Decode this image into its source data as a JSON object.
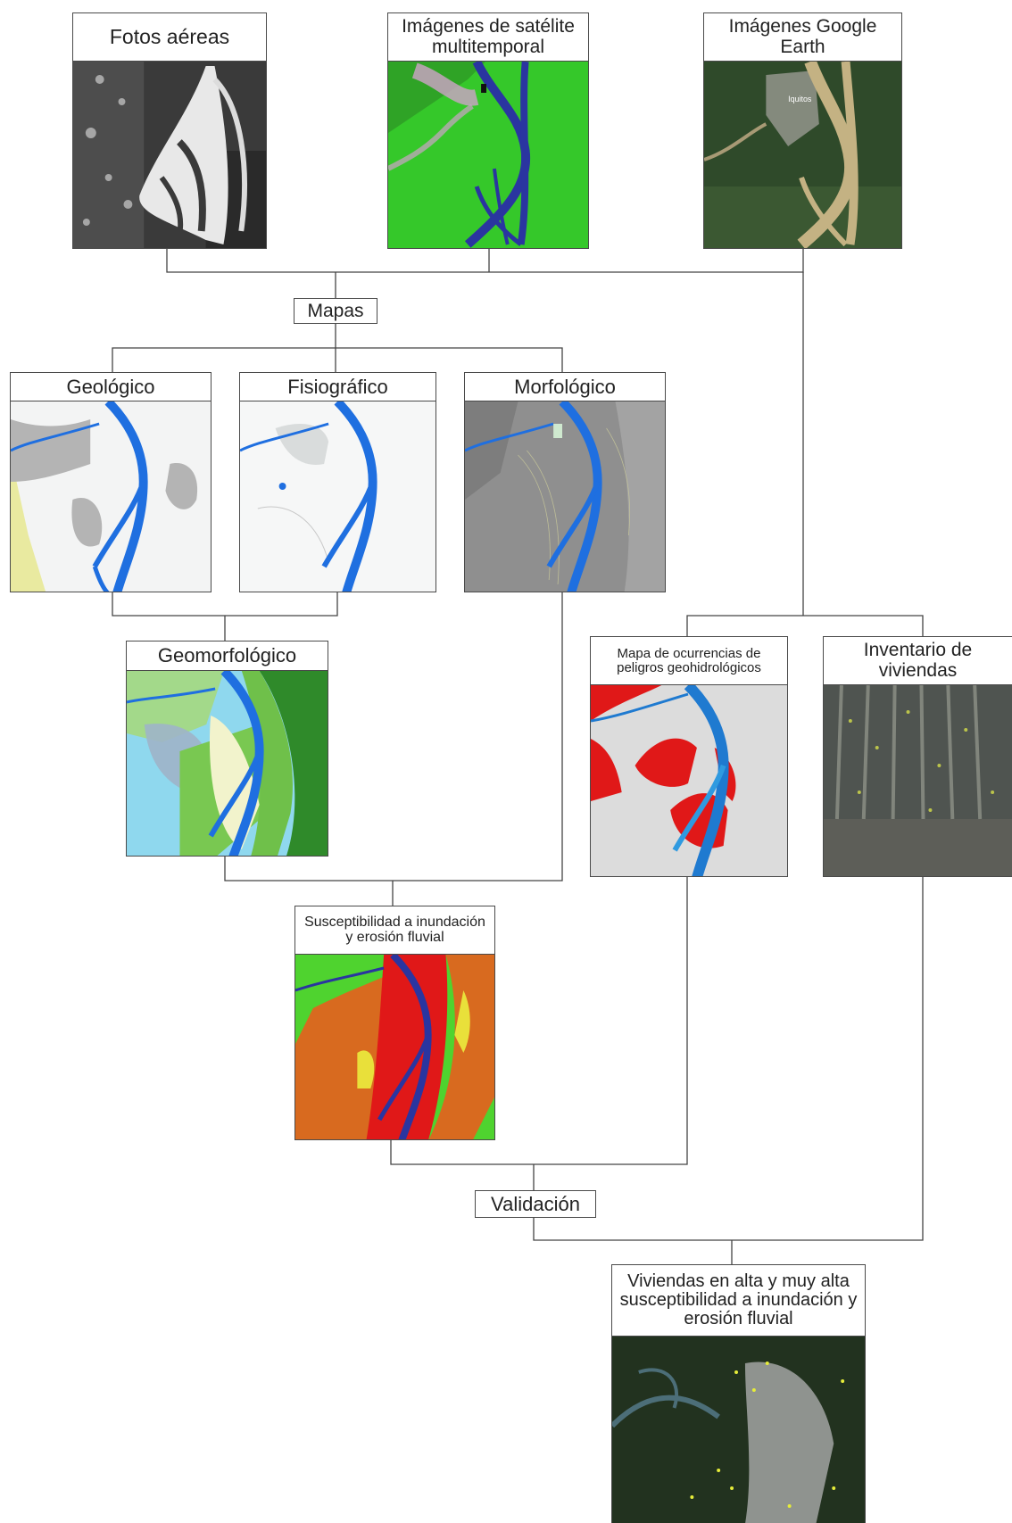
{
  "nodes": {
    "fotos": "Fotos aéreas",
    "satelite": "Imágenes de satélite multitemporal",
    "google": "Imágenes Google Earth",
    "mapas": "Mapas",
    "geologico": "Geológico",
    "fisiografico": "Fisiográfico",
    "morfologico": "Morfológico",
    "geomorfologico": "Geomorfológico",
    "ocurrencias": "Mapa de ocurrencias de peligros geohidrológicos",
    "inventario": "Inventario de viviendas",
    "susceptibilidad": "Susceptibilidad a inundación y erosión fluvial",
    "validacion": "Validación",
    "viviendas": "Viviendas en alta y muy alta susceptibilidad a inundación y erosión fluvial"
  },
  "map_labels": {
    "iquitos": "Iquitos"
  },
  "colors": {
    "river_blue": "#1f6fe0",
    "satellite_green": "#33cc2a",
    "hazard_red": "#e01818",
    "dark_river": "#2a35a0"
  }
}
